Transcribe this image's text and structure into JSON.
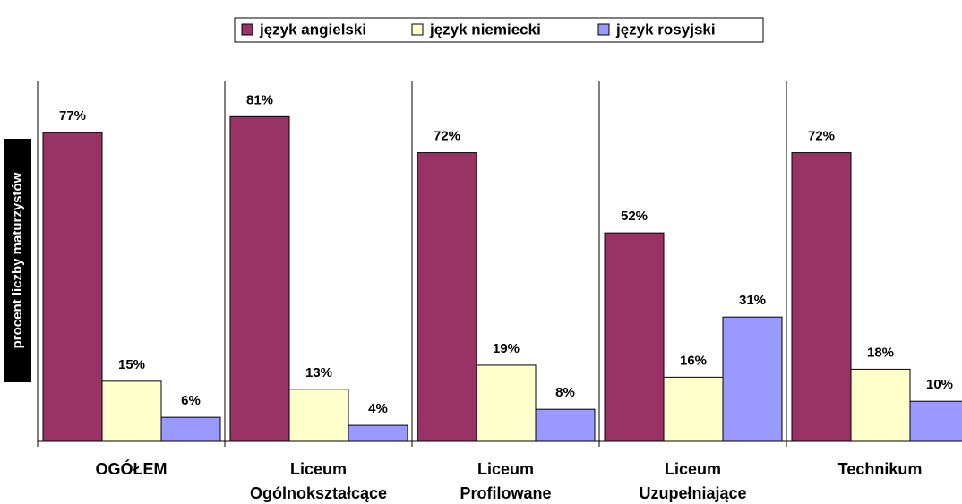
{
  "chart_data": {
    "type": "bar",
    "y_label": "procent liczby maturzystów",
    "categories": [
      [
        "OGÓŁEM"
      ],
      [
        "Liceum",
        "Ogólnokształcące"
      ],
      [
        "Liceum",
        "Profilowane"
      ],
      [
        "Liceum",
        "Uzupełniające"
      ],
      [
        "Technikum"
      ]
    ],
    "series": [
      {
        "name": "język angielski",
        "color": "#993366",
        "values": [
          77,
          81,
          72,
          52,
          72
        ],
        "value_labels": [
          "77%",
          "81%",
          "72%",
          "52%",
          "72%"
        ]
      },
      {
        "name": "język niemiecki",
        "color": "#FFFFCC",
        "values": [
          15,
          13,
          19,
          16,
          18
        ],
        "value_labels": [
          "15%",
          "13%",
          "19%",
          "16%",
          "18%"
        ]
      },
      {
        "name": "język rosyjski",
        "color": "#9999FF",
        "values": [
          6,
          4,
          8,
          31,
          10
        ],
        "value_labels": [
          "6%",
          "4%",
          "8%",
          "31%",
          "10%"
        ]
      }
    ],
    "ylim": [
      0,
      90
    ],
    "legend": "top"
  }
}
